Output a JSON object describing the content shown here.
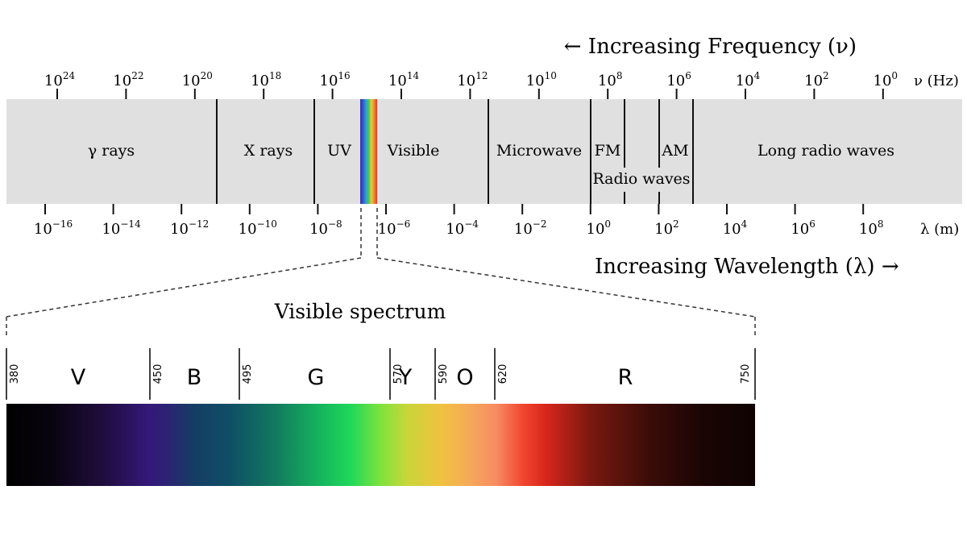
{
  "frequency_axis": {
    "title": "← Increasing Frequency (ν)",
    "unit": "ν (Hz)",
    "ticks": [
      {
        "base": "10",
        "exp": "24"
      },
      {
        "base": "10",
        "exp": "22"
      },
      {
        "base": "10",
        "exp": "20"
      },
      {
        "base": "10",
        "exp": "18"
      },
      {
        "base": "10",
        "exp": "16"
      },
      {
        "base": "10",
        "exp": "14"
      },
      {
        "base": "10",
        "exp": "12"
      },
      {
        "base": "10",
        "exp": "10"
      },
      {
        "base": "10",
        "exp": "8"
      },
      {
        "base": "10",
        "exp": "6"
      },
      {
        "base": "10",
        "exp": "4"
      },
      {
        "base": "10",
        "exp": "2"
      },
      {
        "base": "10",
        "exp": "0"
      }
    ]
  },
  "wavelength_axis": {
    "title": "Increasing Wavelength (λ) →",
    "unit": "λ (m)",
    "ticks": [
      {
        "base": "10",
        "exp": "−16"
      },
      {
        "base": "10",
        "exp": "−14"
      },
      {
        "base": "10",
        "exp": "−12"
      },
      {
        "base": "10",
        "exp": "−10"
      },
      {
        "base": "10",
        "exp": "−8"
      },
      {
        "base": "10",
        "exp": "−6"
      },
      {
        "base": "10",
        "exp": "−4"
      },
      {
        "base": "10",
        "exp": "−2"
      },
      {
        "base": "10",
        "exp": "0"
      },
      {
        "base": "10",
        "exp": "2"
      },
      {
        "base": "10",
        "exp": "4"
      },
      {
        "base": "10",
        "exp": "6"
      },
      {
        "base": "10",
        "exp": "8"
      }
    ]
  },
  "bands": {
    "gamma": "γ rays",
    "xray": "X rays",
    "uv": "UV",
    "visible": "Visible",
    "microwave": "Microwave",
    "fm": "FM",
    "am": "AM",
    "radio": "Radio waves",
    "long_radio": "Long radio waves"
  },
  "visible_spectrum": {
    "title": "Visible spectrum",
    "boundaries": [
      "380",
      "450",
      "495",
      "570",
      "590",
      "620",
      "750"
    ],
    "colors": [
      {
        "letter": "V"
      },
      {
        "letter": "B"
      },
      {
        "letter": "G"
      },
      {
        "letter": "Y"
      },
      {
        "letter": "O"
      },
      {
        "letter": "R"
      }
    ]
  },
  "colors": {
    "band_fill": "#e0e0e0",
    "line": "#111111"
  }
}
